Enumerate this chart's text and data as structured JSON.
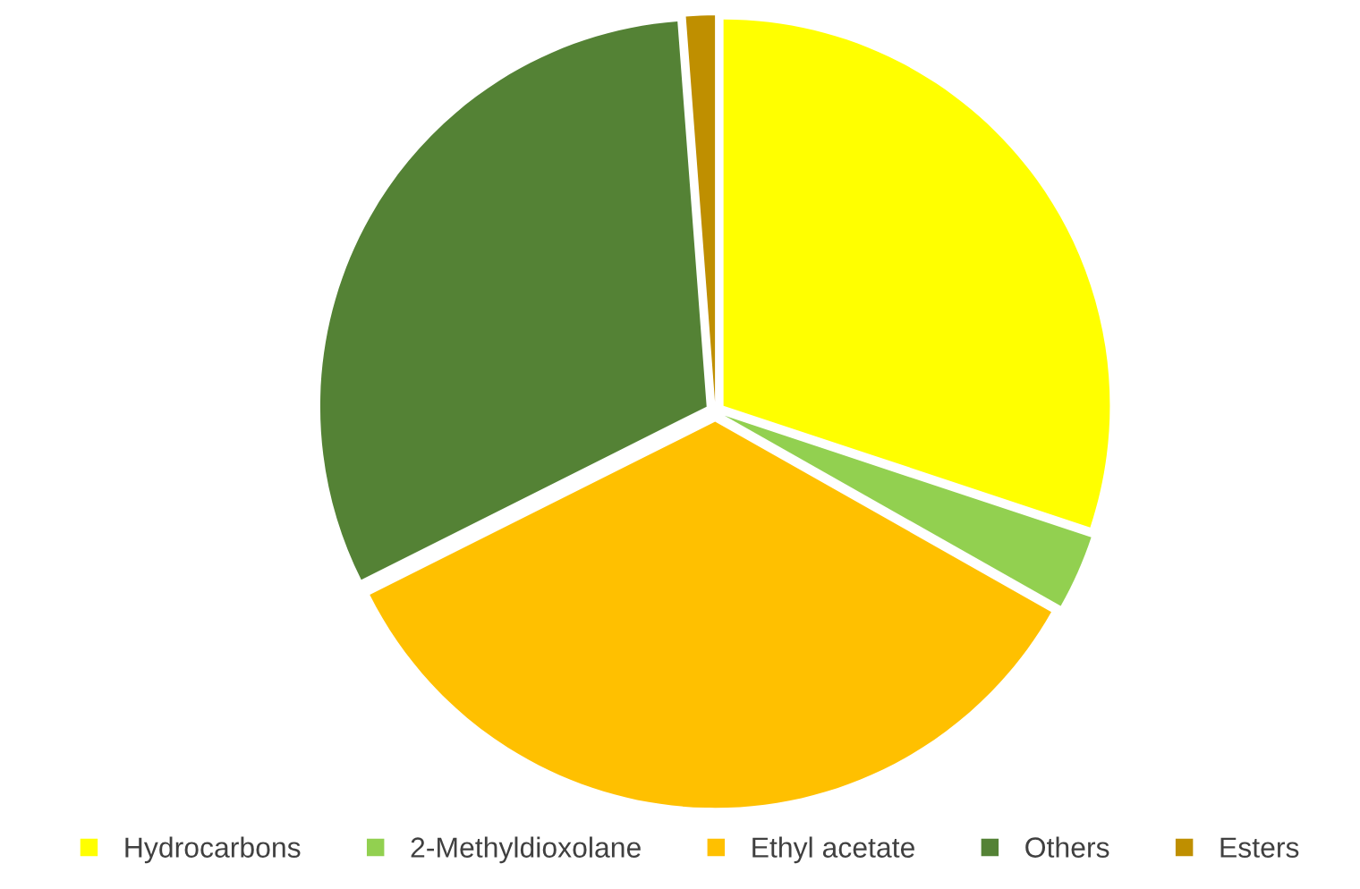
{
  "chart_data": {
    "type": "pie",
    "categories": [
      "Hydrocarbons",
      "2-Methyldioxolane",
      "Ethyl acetate",
      "Others",
      "Esters"
    ],
    "values": [
      30.1,
      3.1,
      34.4,
      31.2,
      1.2
    ],
    "colors": [
      "#ffff00",
      "#92d050",
      "#ffc000",
      "#548235",
      "#bf8f00"
    ],
    "legend": "bottom"
  }
}
